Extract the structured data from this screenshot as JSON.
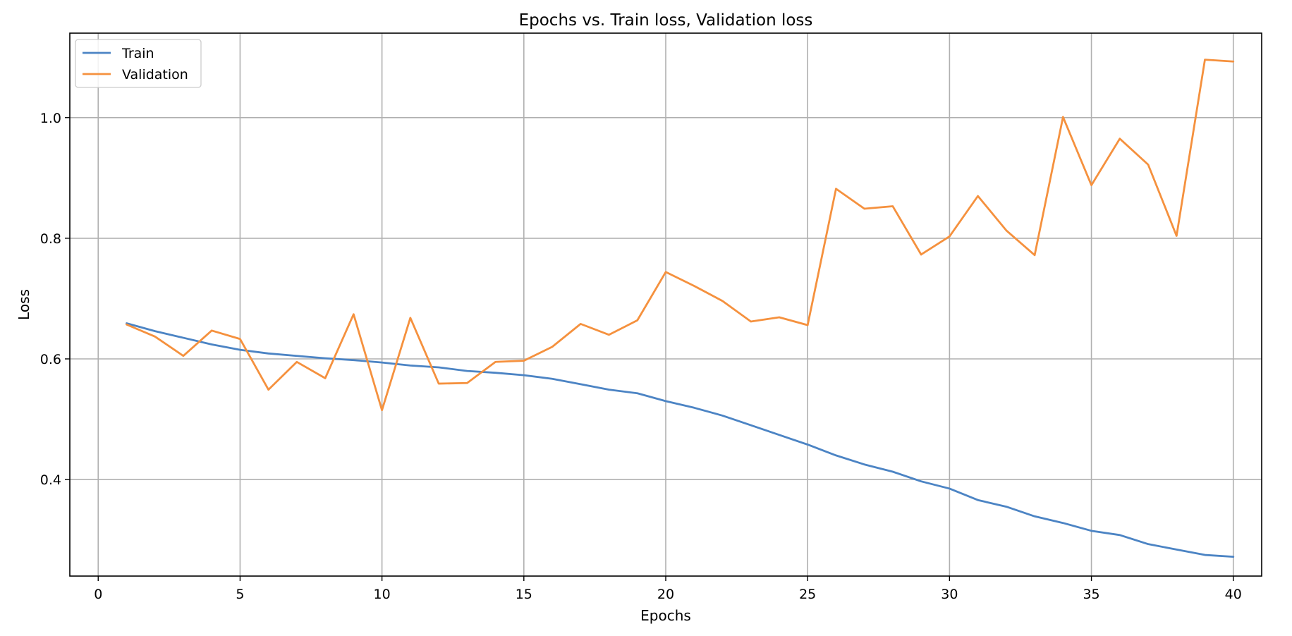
{
  "chart_data": {
    "type": "line",
    "title": "Epochs vs. Train loss, Validation loss",
    "xlabel": "Epochs",
    "ylabel": "Loss",
    "xlim": [
      -1,
      41
    ],
    "ylim": [
      0.24,
      1.14
    ],
    "xticks": [
      0,
      5,
      10,
      15,
      20,
      25,
      30,
      35,
      40
    ],
    "yticks": [
      0.4,
      0.6,
      0.8,
      1.0
    ],
    "ytick_labels": [
      "0.4",
      "0.6",
      "0.8",
      "1.0"
    ],
    "grid": true,
    "legend_position": "upper-left",
    "x": [
      1,
      2,
      3,
      4,
      5,
      6,
      7,
      8,
      9,
      10,
      11,
      12,
      13,
      14,
      15,
      16,
      17,
      18,
      19,
      20,
      21,
      22,
      23,
      24,
      25,
      26,
      27,
      28,
      29,
      30,
      31,
      32,
      33,
      34,
      35,
      36,
      37,
      38,
      39,
      40
    ],
    "series": [
      {
        "name": "Train",
        "color": "#4c84c4",
        "values": [
          0.659,
          0.646,
          0.635,
          0.624,
          0.615,
          0.609,
          0.605,
          0.601,
          0.598,
          0.594,
          0.589,
          0.586,
          0.58,
          0.577,
          0.573,
          0.567,
          0.558,
          0.549,
          0.543,
          0.53,
          0.519,
          0.506,
          0.49,
          0.474,
          0.458,
          0.44,
          0.425,
          0.413,
          0.397,
          0.385,
          0.366,
          0.355,
          0.339,
          0.328,
          0.315,
          0.308,
          0.293,
          0.284,
          0.275,
          0.272
        ]
      },
      {
        "name": "Validation",
        "color": "#f5913e",
        "values": [
          0.657,
          0.637,
          0.605,
          0.647,
          0.633,
          0.549,
          0.595,
          0.568,
          0.674,
          0.515,
          0.668,
          0.559,
          0.56,
          0.595,
          0.597,
          0.62,
          0.658,
          0.64,
          0.664,
          0.744,
          0.721,
          0.696,
          0.662,
          0.669,
          0.656,
          0.882,
          0.849,
          0.853,
          0.773,
          0.803,
          0.87,
          0.813,
          0.772,
          1.001,
          0.888,
          0.965,
          0.922,
          0.804,
          1.096,
          1.093
        ]
      }
    ]
  }
}
